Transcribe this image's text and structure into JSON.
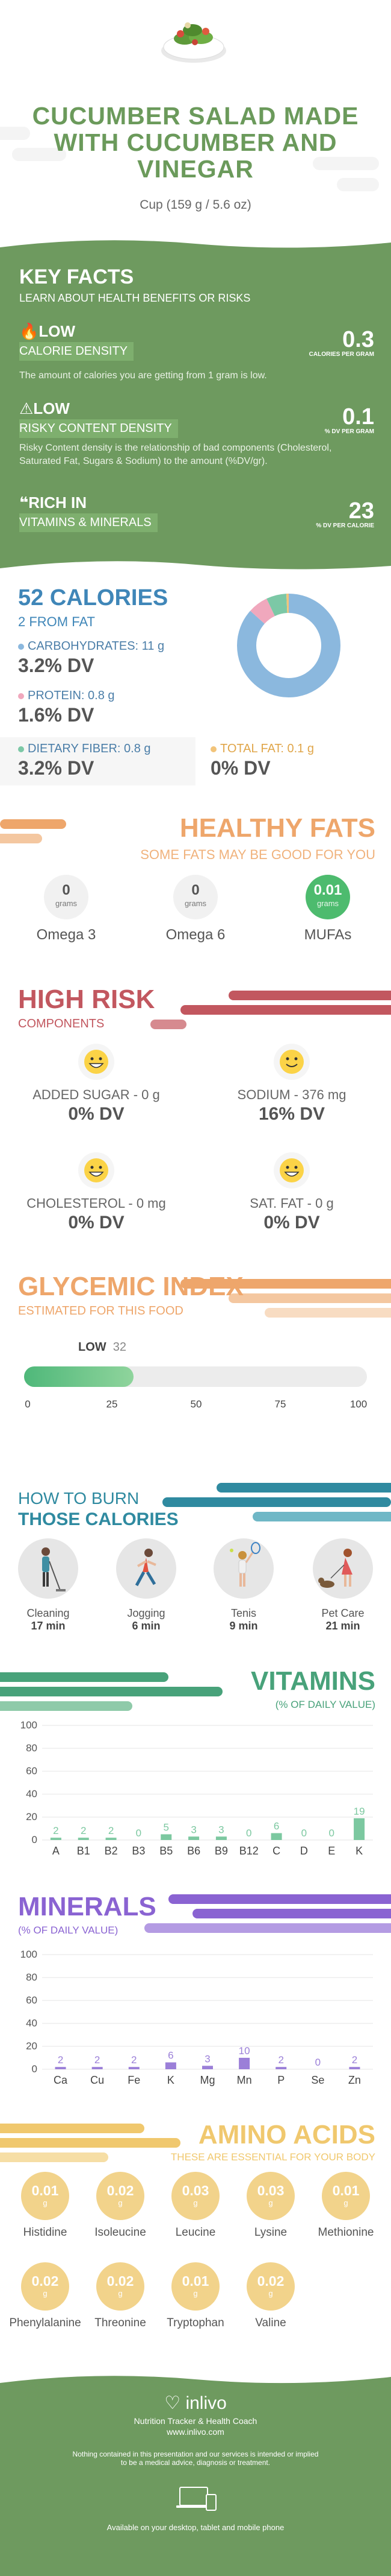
{
  "title": "CUCUMBER SALAD MADE WITH CUCUMBER AND VINEGAR",
  "serving": "Cup (159 g / 5.6 oz)",
  "key_facts": {
    "title": "KEY FACTS",
    "subtitle": "LEARN ABOUT HEALTH BENEFITS OR RISKS",
    "items": [
      {
        "level": "LOW",
        "label": "CALORIE DENSITY",
        "description": "The amount of calories you are getting from 1 gram is low.",
        "value": "0.3",
        "unit": "CALORIES PER GRAM",
        "icon": "flame-icon"
      },
      {
        "level": "LOW",
        "label": "RISKY CONTENT DENSITY",
        "description": "Risky Content density is the relationship of bad components (Cholesterol, Saturated Fat, Sugars & Sodium) to the amount (%DV/gr).",
        "value": "0.1",
        "unit": "% DV PER GRAM",
        "icon": "warning-icon"
      },
      {
        "level": "RICH  IN",
        "label": "VITAMINS & MINERALS",
        "description": "",
        "value": "23",
        "unit": "% DV PER CALORIE",
        "icon": "pill-icon"
      }
    ]
  },
  "calories": {
    "title": "52 CALORIES",
    "subtitle": "2 FROM FAT",
    "items": [
      {
        "label": "CARBOHYDRATES: 11 g",
        "dv": "3.2% DV",
        "color": "#8bb8de"
      },
      {
        "label": "PROTEIN: 0.8 g",
        "dv": "1.6% DV",
        "color": "#f0a8bd"
      },
      {
        "label": "DIETARY FIBER: 0.8 g",
        "dv": "3.2% DV",
        "color": "#7cc8a6"
      },
      {
        "label": "TOTAL FAT: 0.1 g",
        "dv": "0% DV",
        "color": "#f2c47a"
      }
    ],
    "donut": [
      {
        "name": "carbohydrates",
        "value": 11,
        "color": "#8bb8de"
      },
      {
        "name": "protein",
        "value": 0.8,
        "color": "#f0a8bd"
      },
      {
        "name": "fiber",
        "value": 0.8,
        "color": "#7cc8a6"
      },
      {
        "name": "fat",
        "value": 0.1,
        "color": "#f2c47a"
      }
    ]
  },
  "healthy_fats": {
    "title": "HEALTHY FATS",
    "subtitle": "SOME FATS MAY BE GOOD FOR YOU",
    "items": [
      {
        "value": "0",
        "unit": "grams",
        "label": "Omega 3"
      },
      {
        "value": "0",
        "unit": "grams",
        "label": "Omega 6"
      },
      {
        "value": "0.01",
        "unit": "grams",
        "label": "MUFAs"
      }
    ]
  },
  "high_risk": {
    "title": "HIGH RISK",
    "subtitle": "COMPONENTS",
    "items": [
      {
        "label": "ADDED SUGAR - 0 g",
        "dv": "0% DV",
        "face": "grin-face-icon"
      },
      {
        "label": "SODIUM - 376 mg",
        "dv": "16% DV",
        "face": "smile-face-icon"
      },
      {
        "label": "CHOLESTEROL - 0 mg",
        "dv": "0% DV",
        "face": "grin-face-icon"
      },
      {
        "label": "SAT. FAT - 0 g",
        "dv": "0% DV",
        "face": "grin-face-icon"
      }
    ]
  },
  "glycemic": {
    "title": "GLYCEMIC INDEX",
    "subtitle": "ESTIMATED FOR THIS FOOD",
    "level": "LOW",
    "value": "32",
    "value_num": 32,
    "ticks": [
      "0",
      "25",
      "50",
      "75",
      "100"
    ]
  },
  "burn": {
    "title_line1": "HOW TO BURN",
    "title_line2": "THOSE CALORIES",
    "items": [
      {
        "name": "Cleaning",
        "time": "17 min",
        "icon": "cleaning-person-icon"
      },
      {
        "name": "Jogging",
        "time": "6 min",
        "icon": "jogging-person-icon"
      },
      {
        "name": "Tenis",
        "time": "9 min",
        "icon": "tennis-person-icon"
      },
      {
        "name": "Pet Care",
        "time": "21 min",
        "icon": "pet-care-person-icon"
      }
    ]
  },
  "vitamins": {
    "title": "VITAMINS",
    "subtitle": "(% OF DAILY VALUE)"
  },
  "minerals": {
    "title": "MINERALS",
    "subtitle": "(% OF DAILY VALUE)"
  },
  "chart_data": [
    {
      "type": "bar",
      "title": "VITAMINS",
      "subtitle": "(% OF DAILY VALUE)",
      "categories": [
        "A",
        "B1",
        "B2",
        "B3",
        "B5",
        "B6",
        "B9",
        "B12",
        "C",
        "D",
        "E",
        "K"
      ],
      "values": [
        2,
        2,
        2,
        0,
        5,
        3,
        3,
        0,
        6,
        0,
        0,
        19
      ],
      "ylim": [
        0,
        100
      ],
      "yticks": [
        0,
        20,
        40,
        60,
        80,
        100
      ],
      "color": "#7cc8a0",
      "grid": true
    },
    {
      "type": "bar",
      "title": "MINERALS",
      "subtitle": "(% OF DAILY VALUE)",
      "categories": [
        "Ca",
        "Cu",
        "Fe",
        "K",
        "Mg",
        "Mn",
        "P",
        "Se",
        "Zn"
      ],
      "values": [
        2,
        2,
        2,
        6,
        3,
        10,
        2,
        0,
        2
      ],
      "ylim": [
        0,
        100
      ],
      "yticks": [
        0,
        20,
        40,
        60,
        80,
        100
      ],
      "color": "#9b7fd8",
      "grid": true
    }
  ],
  "amino_acids": {
    "title": "AMINO ACIDS",
    "subtitle": "THESE ARE ESSENTIAL FOR YOUR BODY",
    "items": [
      {
        "value": "0.01",
        "unit": "g",
        "label": "Histidine"
      },
      {
        "value": "0.02",
        "unit": "g",
        "label": "Isoleucine"
      },
      {
        "value": "0.03",
        "unit": "g",
        "label": "Leucine"
      },
      {
        "value": "0.03",
        "unit": "g",
        "label": "Lysine"
      },
      {
        "value": "0.01",
        "unit": "g",
        "label": "Methionine"
      },
      {
        "value": "0.02",
        "unit": "g",
        "label": "Phenylalanine"
      },
      {
        "value": "0.02",
        "unit": "g",
        "label": "Threonine"
      },
      {
        "value": "0.01",
        "unit": "g",
        "label": "Tryptophan"
      },
      {
        "value": "0.02",
        "unit": "g",
        "label": "Valine"
      }
    ]
  },
  "footer": {
    "brand": "inlivo",
    "tagline": "Nutrition Tracker & Health Coach",
    "url": "www.inlivo.com",
    "disclaimer_line1": "Nothing contained in this presentation and our services is intended or implied",
    "disclaimer_line2": "to be a medical advice, diagnosis or treatment.",
    "available": "Available on your desktop, tablet and mobile phone"
  },
  "colors": {
    "green": "#6b9a5b",
    "blue": "#3f86b8",
    "orange": "#eea66b",
    "red": "#c2575f",
    "teal": "#2f8aa0",
    "purple": "#8a63d2",
    "amber": "#f0c86e"
  }
}
